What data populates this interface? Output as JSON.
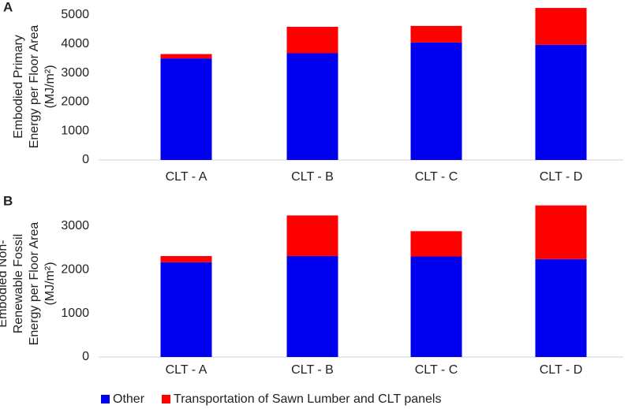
{
  "chart_data": [
    {
      "type": "stacked_bar",
      "panel": "A",
      "ylabel_lines": [
        "Embodied Primary",
        "Energy per Floor Area",
        "(MJ/m²)"
      ],
      "categories": [
        "CLT - A",
        "CLT - B",
        "CLT - C",
        "CLT - D"
      ],
      "series": [
        {
          "name": "Other",
          "color": "#0000f0",
          "values": [
            3500,
            3680,
            4050,
            3970
          ]
        },
        {
          "name": "Transportation of Sawn Lumber and CLT panels",
          "color": "#ff0000",
          "values": [
            150,
            910,
            570,
            1270
          ]
        }
      ],
      "ylim": [
        0,
        5500
      ],
      "yticks": [
        0,
        1000,
        2000,
        3000,
        4000,
        5000
      ],
      "grid": false
    },
    {
      "type": "stacked_bar",
      "panel": "B",
      "ylabel_lines": [
        "Embodied Non-",
        "Renewable Fossil",
        "Energy per Floor Area",
        "(MJ/m²)"
      ],
      "categories": [
        "CLT - A",
        "CLT - B",
        "CLT - C",
        "CLT - D"
      ],
      "series": [
        {
          "color": "#0000f0",
          "values": [
            2170,
            2310,
            2300,
            2240
          ]
        },
        {
          "color": "#ff0000",
          "values": [
            140,
            930,
            580,
            1230
          ]
        }
      ],
      "ylim": [
        0,
        3500
      ],
      "yticks": [
        0,
        1000,
        2000,
        3000
      ],
      "grid": false
    }
  ]
}
